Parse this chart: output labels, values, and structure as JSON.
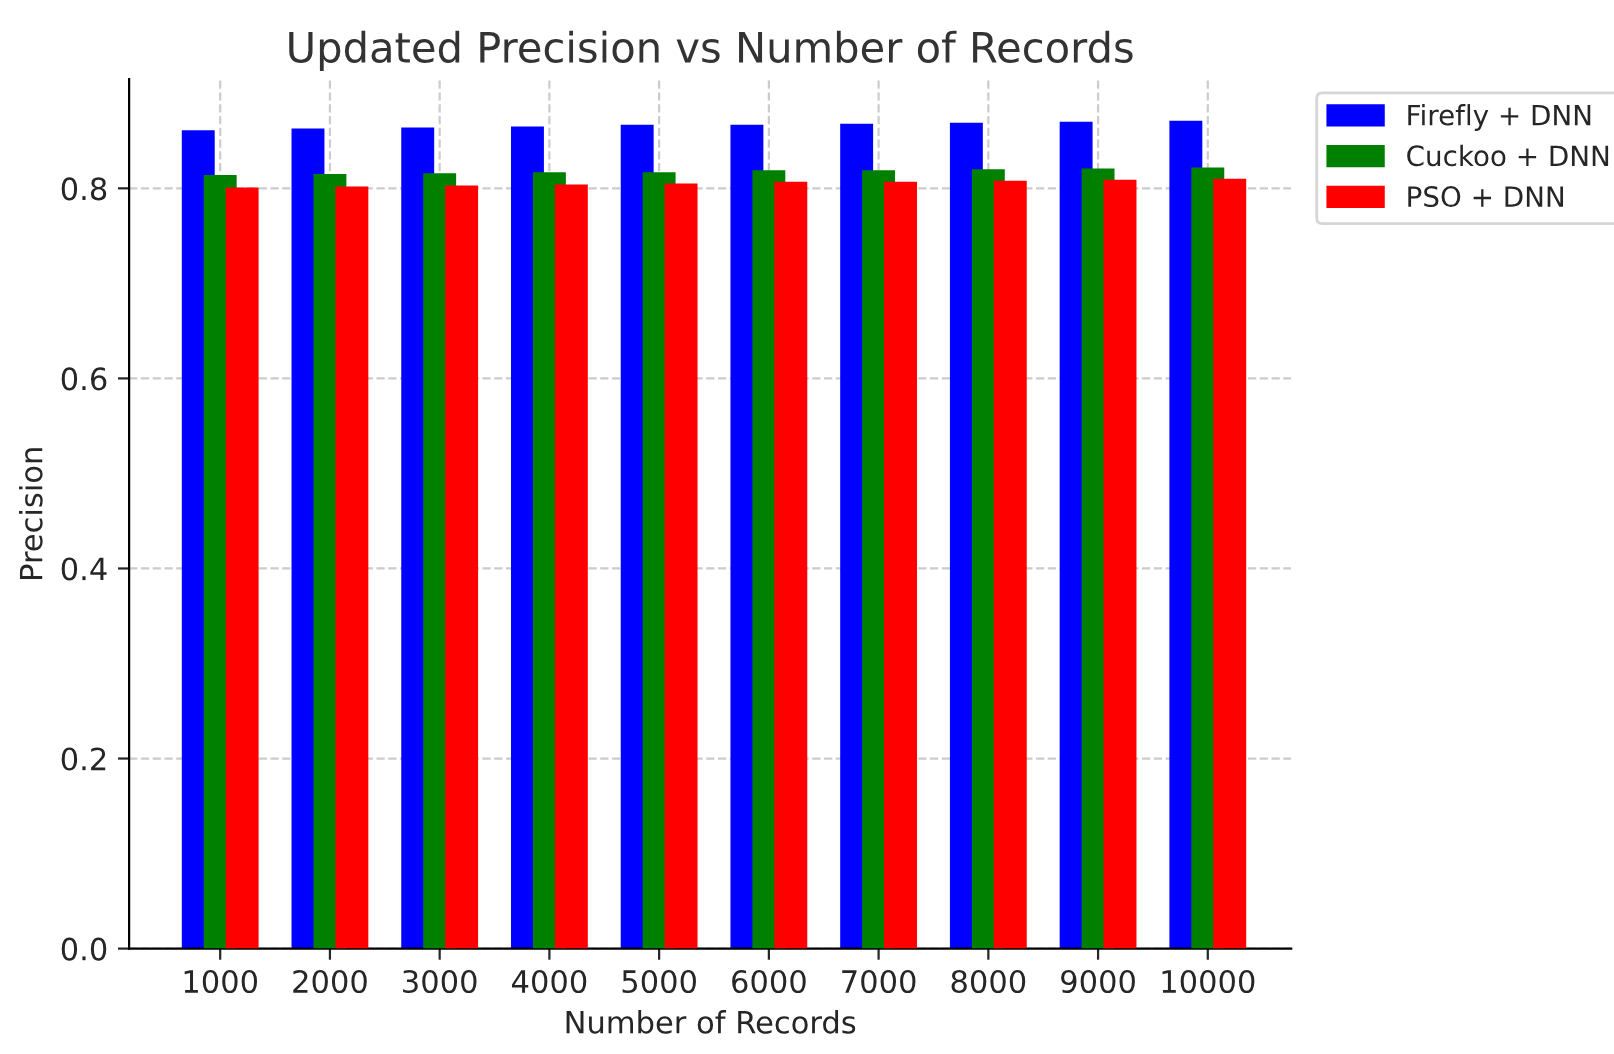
{
  "chart_data": {
    "type": "bar",
    "title": "Updated Precision vs Number of Records",
    "xlabel": "Number of Records",
    "ylabel": "Precision",
    "categories": [
      "1000",
      "2000",
      "3000",
      "4000",
      "5000",
      "6000",
      "7000",
      "8000",
      "9000",
      "10000"
    ],
    "series": [
      {
        "name": "Firefly + DNN",
        "color": "#0000ff",
        "values": [
          0.861,
          0.863,
          0.864,
          0.865,
          0.867,
          0.867,
          0.868,
          0.869,
          0.87,
          0.871
        ]
      },
      {
        "name": "Cuckoo + DNN",
        "color": "#008000",
        "values": [
          0.814,
          0.815,
          0.816,
          0.817,
          0.817,
          0.819,
          0.819,
          0.82,
          0.821,
          0.822
        ]
      },
      {
        "name": "PSO + DNN",
        "color": "#ff0000",
        "values": [
          0.801,
          0.802,
          0.803,
          0.804,
          0.805,
          0.807,
          0.807,
          0.808,
          0.809,
          0.81
        ]
      }
    ],
    "ylim": [
      0,
      0.915
    ],
    "yticks": [
      {
        "value": 0,
        "label": "0.0"
      },
      {
        "value": 0.2,
        "label": "0.2"
      },
      {
        "value": 0.4,
        "label": "0.4"
      },
      {
        "value": 0.6,
        "label": "0.6"
      },
      {
        "value": 0.8,
        "label": "0.8"
      }
    ],
    "grid": true,
    "legend": "right"
  }
}
